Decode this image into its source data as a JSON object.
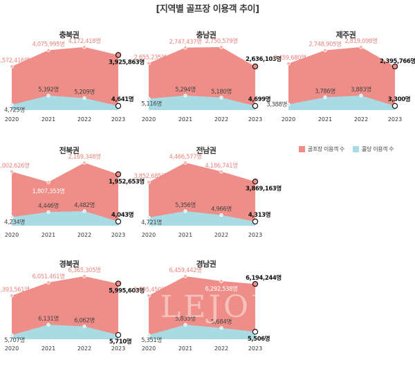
{
  "title": "[지역별 골프장 이용객 추이]",
  "legend": {
    "golf": "골프장 이용객 수",
    "screen": "홀당 이용객 수"
  },
  "colors": {
    "golf": "#ef8e88",
    "screen": "#a8dbe4"
  },
  "watermark": "LEJOURN",
  "chart_data": [
    {
      "type": "area",
      "title": "충북권",
      "categories": [
        "2020",
        "2021",
        "2022",
        "2023"
      ],
      "series": [
        {
          "name": "골프장 이용객 수",
          "values": [
            3572416,
            4075995,
            4172418,
            3925863
          ],
          "labels": [
            "3,572,416명",
            "4,075,995명",
            "4,172,418명",
            "3,925,863명"
          ]
        },
        {
          "name": "홀당 이용객 수",
          "values": [
            4725,
            5392,
            5209,
            4641
          ],
          "labels": [
            "4,725명",
            "5,392명",
            "5,209명",
            "4,641명"
          ]
        }
      ]
    },
    {
      "type": "area",
      "title": "충남권",
      "categories": [
        "2020",
        "2021",
        "2022",
        "2023"
      ],
      "series": [
        {
          "name": "골프장 이용객 수",
          "values": [
            2655235,
            2747437,
            2750579,
            2636103
          ],
          "labels": [
            "2,655,235명",
            "2,747,437명",
            "2,750,579명",
            "2,636,103명"
          ]
        },
        {
          "name": "홀당 이용객 수",
          "values": [
            5116,
            5294,
            5180,
            4699
          ],
          "labels": [
            "5,116명",
            "5,294명",
            "5,180명",
            "4,699명"
          ]
        }
      ]
    },
    {
      "type": "area",
      "title": "제주권",
      "categories": [
        "2020",
        "2021",
        "2022",
        "2023"
      ],
      "series": [
        {
          "name": "골프장 이용객 수",
          "values": [
            2459680,
            2748905,
            2819098,
            2395766
          ],
          "labels": [
            "2,459,680명",
            "2,748,905명",
            "2,819,098명",
            "2,395,766명"
          ]
        },
        {
          "name": "홀당 이용객 수",
          "values": [
            3388,
            3786,
            3883,
            3300
          ],
          "labels": [
            "3,388명",
            "3,786명",
            "3,883명",
            "3,300명"
          ]
        }
      ]
    },
    {
      "type": "area",
      "title": "전북권",
      "categories": [
        "2020",
        "2021",
        "2022",
        "2023"
      ],
      "series": [
        {
          "name": "골프장 이용객 수",
          "values": [
            2002626,
            1807353,
            2169348,
            1952653
          ],
          "labels": [
            "2,002,626명",
            "1,807,353명",
            "2,169,348명",
            "1,952,653명"
          ]
        },
        {
          "name": "홀당 이용객 수",
          "values": [
            4234,
            4446,
            4482,
            4043
          ],
          "labels": [
            "4,234명",
            "4,446명",
            "4,482명",
            "4,043명"
          ]
        }
      ]
    },
    {
      "type": "area",
      "title": "전남권",
      "categories": [
        "2020",
        "2021",
        "2022",
        "2023"
      ],
      "series": [
        {
          "name": "골프장 이용객 수",
          "values": [
            3852685,
            4466577,
            4186741,
            3869163
          ],
          "labels": [
            "3,852,685명",
            "4,466,577명",
            "4,186,741명",
            "3,869,163명"
          ]
        },
        {
          "name": "홀당 이용객 수",
          "values": [
            4721,
            5356,
            4966,
            4313
          ],
          "labels": [
            "4,721명",
            "5,356명",
            "4,966명",
            "4,313명"
          ]
        }
      ]
    },
    {
      "type": "area",
      "title": "경북권",
      "categories": [
        "2020",
        "2021",
        "2022",
        "2023"
      ],
      "series": [
        {
          "name": "골프장 이용객 수",
          "values": [
            5393561,
            6051461,
            6365305,
            5995603
          ],
          "labels": [
            "5,393,561명",
            "6,051,461명",
            "6,365,305명",
            "5,995,603명"
          ]
        },
        {
          "name": "홀당 이용객 수",
          "values": [
            5707,
            6131,
            6062,
            5710
          ],
          "labels": [
            "5,707명",
            "6,131명",
            "6,062명",
            "5,710명"
          ]
        }
      ]
    },
    {
      "type": "area",
      "title": "경남권",
      "categories": [
        "2020",
        "2021",
        "2022",
        "2023"
      ],
      "series": [
        {
          "name": "골프장 이용객 수",
          "values": [
            5795450,
            6459442,
            6292538,
            6194244
          ],
          "labels": [
            "5,795,450명",
            "6,459,442명",
            "6,292,538명",
            "6,194,244명"
          ]
        },
        {
          "name": "홀당 이용객 수",
          "values": [
            5351,
            5835,
            5684,
            5506
          ],
          "labels": [
            "5,351명",
            "5,835명",
            "5,684명",
            "5,506명"
          ]
        }
      ]
    }
  ]
}
